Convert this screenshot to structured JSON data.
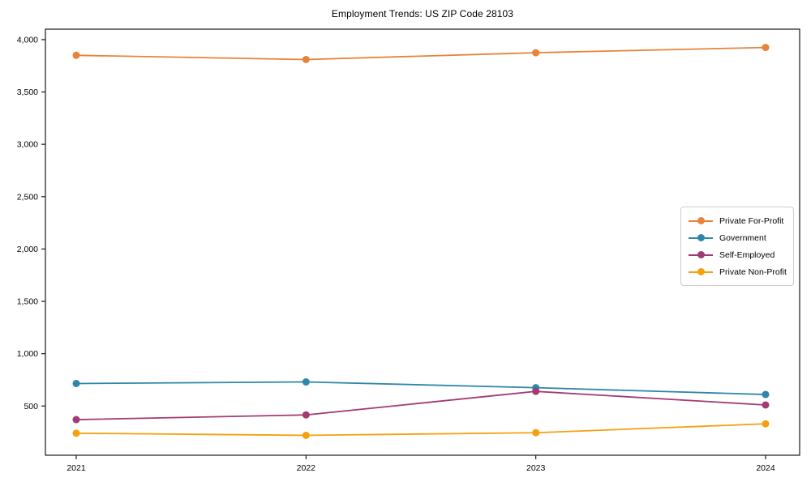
{
  "chart_data": {
    "type": "line",
    "title": "Employment Trends: US ZIP Code 28103",
    "x": [
      "2021",
      "2022",
      "2023",
      "2024"
    ],
    "series": [
      {
        "name": "Private For-Profit",
        "color": "#E8833A",
        "values": [
          3850,
          3810,
          3875,
          3925
        ]
      },
      {
        "name": "Government",
        "color": "#2E86AB",
        "values": [
          715,
          730,
          675,
          610
        ]
      },
      {
        "name": "Self-Employed",
        "color": "#A23B72",
        "values": [
          370,
          415,
          640,
          510
        ]
      },
      {
        "name": "Private Non-Profit",
        "color": "#F5A00F",
        "values": [
          240,
          220,
          245,
          330
        ]
      }
    ],
    "xlabel": "",
    "ylabel": "",
    "ylim": [
      30,
      4100
    ],
    "yticks": [
      500,
      1000,
      1500,
      2000,
      2500,
      3000,
      3500,
      4000
    ],
    "ytick_labels": [
      "500",
      "1,000",
      "1,500",
      "2,000",
      "2,500",
      "3,000",
      "3,500",
      "4,000"
    ],
    "grid": false,
    "legend_position": "center-right",
    "axis_color": "#1a1a1a",
    "background": "#ffffff"
  }
}
